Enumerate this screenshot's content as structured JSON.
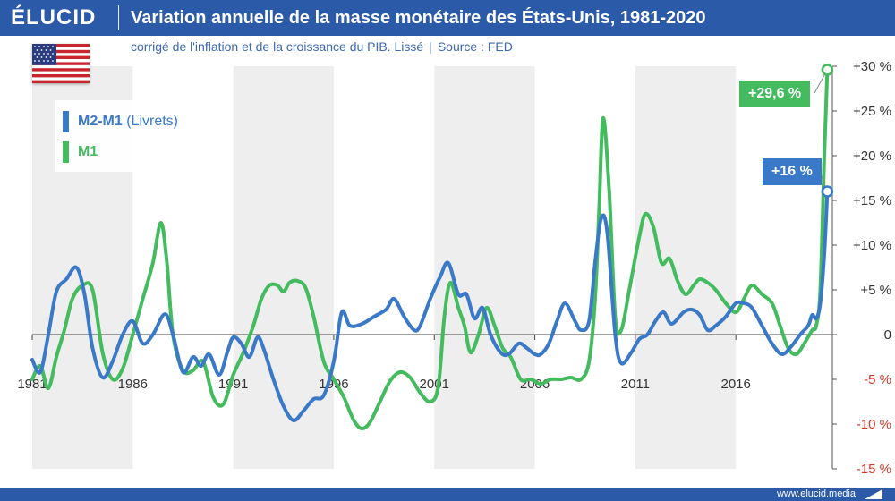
{
  "header": {
    "logo": "ÉLUCID",
    "title": "Variation annuelle de la masse monétaire des États-Unis, 1981-2020",
    "subtitle_main": "corrigé de l'inflation et de la croissance du PIB. Lissé",
    "subtitle_source": "Source : FED",
    "color": "#2b5aa8"
  },
  "footer": {
    "url": "www.elucid.media"
  },
  "flag": {
    "icon": "us-flag-icon"
  },
  "legend": [
    {
      "label": "M2-M1",
      "sub": " (Livrets)",
      "color": "#3a78c8"
    },
    {
      "label": "M1",
      "sub": "",
      "color": "#44bb5e"
    }
  ],
  "tags": {
    "m1_last": {
      "text": "+29,6 %",
      "color": "#44bb5e"
    },
    "m2_last": {
      "text": "+16 %",
      "color": "#3a78c8"
    }
  },
  "chart_data": {
    "type": "line",
    "xlim": [
      1981,
      2020.8
    ],
    "ylim": [
      -15,
      30
    ],
    "x_ticks": [
      1981,
      1986,
      1991,
      1996,
      2001,
      2006,
      2011,
      2016
    ],
    "x_tick_labels": [
      "1981",
      "1986",
      "1991",
      "1996",
      "2001",
      "2006",
      "2011",
      "2016"
    ],
    "y_ticks": [
      30,
      25,
      20,
      15,
      10,
      5,
      0,
      -5,
      -10,
      -15
    ],
    "y_tick_labels": [
      "+30 %",
      "+25 %",
      "+20 %",
      "+15 %",
      "+10 %",
      "+5 %",
      "0",
      "-5 %",
      "-10 %",
      "-15 %"
    ],
    "grid": "alternating vertical bands",
    "series": [
      {
        "name": "M2-M1 (Livrets)",
        "color": "#3a78c8",
        "points": [
          [
            1981,
            -2.8
          ],
          [
            1981.4,
            -4.2
          ],
          [
            1981.8,
            0
          ],
          [
            1982.2,
            4.8
          ],
          [
            1982.7,
            6.2
          ],
          [
            1983.2,
            7.5
          ],
          [
            1983.6,
            4.5
          ],
          [
            1984,
            -1.5
          ],
          [
            1984.5,
            -4.8
          ],
          [
            1985,
            -3
          ],
          [
            1985.5,
            0
          ],
          [
            1986,
            1.5
          ],
          [
            1986.5,
            -1
          ],
          [
            1987,
            0
          ],
          [
            1987.6,
            2.3
          ],
          [
            1988,
            0
          ],
          [
            1988.5,
            -4.2
          ],
          [
            1989,
            -2.5
          ],
          [
            1989.4,
            -3.5
          ],
          [
            1989.8,
            -2.2
          ],
          [
            1990.3,
            -4.5
          ],
          [
            1990.7,
            -2
          ],
          [
            1991,
            -0.3
          ],
          [
            1991.4,
            -1
          ],
          [
            1991.8,
            -2.5
          ],
          [
            1992.2,
            -0.3
          ],
          [
            1992.5,
            -1.5
          ],
          [
            1993,
            -5
          ],
          [
            1993.5,
            -8
          ],
          [
            1994,
            -9.6
          ],
          [
            1994.5,
            -8.5
          ],
          [
            1995,
            -7.2
          ],
          [
            1995.5,
            -6.8
          ],
          [
            1996,
            -3
          ],
          [
            1996.4,
            2.5
          ],
          [
            1996.8,
            1
          ],
          [
            1997.4,
            1.2
          ],
          [
            1998,
            2
          ],
          [
            1998.6,
            2.8
          ],
          [
            1999,
            4
          ],
          [
            1999.5,
            2
          ],
          [
            2000,
            0.5
          ],
          [
            2000.3,
            1
          ],
          [
            2000.8,
            4
          ],
          [
            2001.3,
            6.5
          ],
          [
            2001.7,
            8
          ],
          [
            2002.2,
            4.5
          ],
          [
            2002.6,
            4.5
          ],
          [
            2003,
            1.8
          ],
          [
            2003.4,
            3
          ],
          [
            2003.8,
            0
          ],
          [
            2004.3,
            -2
          ],
          [
            2004.7,
            -2.2
          ],
          [
            2005.2,
            -1
          ],
          [
            2005.6,
            -1.5
          ],
          [
            2006,
            -2.2
          ],
          [
            2006.3,
            -2.2
          ],
          [
            2006.7,
            -1
          ],
          [
            2007.1,
            1.5
          ],
          [
            2007.5,
            3.5
          ],
          [
            2008,
            1.5
          ],
          [
            2008.3,
            0.5
          ],
          [
            2008.7,
            1.5
          ],
          [
            2009,
            8
          ],
          [
            2009.3,
            13
          ],
          [
            2009.6,
            11.5
          ],
          [
            2010,
            0
          ],
          [
            2010.3,
            -3.2
          ],
          [
            2010.8,
            -2
          ],
          [
            2011.2,
            -0.5
          ],
          [
            2011.6,
            0
          ],
          [
            2012,
            1.5
          ],
          [
            2012.4,
            2.5
          ],
          [
            2012.8,
            1.2
          ],
          [
            2013.4,
            2.5
          ],
          [
            2013.8,
            2.8
          ],
          [
            2014.2,
            2.2
          ],
          [
            2014.6,
            0.5
          ],
          [
            2015,
            1
          ],
          [
            2015.5,
            2
          ],
          [
            2016,
            3.5
          ],
          [
            2016.4,
            3.5
          ],
          [
            2016.8,
            3
          ],
          [
            2017.3,
            1
          ],
          [
            2017.8,
            -1
          ],
          [
            2018.3,
            -2.2
          ],
          [
            2018.8,
            -1.2
          ],
          [
            2019.2,
            0
          ],
          [
            2019.6,
            1
          ],
          [
            2019.8,
            2.2
          ],
          [
            2020,
            1.8
          ],
          [
            2020.2,
            3.5
          ],
          [
            2020.4,
            9
          ],
          [
            2020.55,
            16
          ]
        ]
      },
      {
        "name": "M1",
        "color": "#44bb5e",
        "points": [
          [
            1981,
            -5
          ],
          [
            1981.4,
            -3.5
          ],
          [
            1981.8,
            -6
          ],
          [
            1982.2,
            -2.5
          ],
          [
            1982.6,
            0.5
          ],
          [
            1983,
            4
          ],
          [
            1983.5,
            5.5
          ],
          [
            1984,
            5
          ],
          [
            1984.5,
            -2
          ],
          [
            1985,
            -5
          ],
          [
            1985.5,
            -3.8
          ],
          [
            1986,
            0
          ],
          [
            1986.5,
            4
          ],
          [
            1987,
            8
          ],
          [
            1987.4,
            12.5
          ],
          [
            1987.7,
            8
          ],
          [
            1988,
            0
          ],
          [
            1988.5,
            -4
          ],
          [
            1989,
            -4
          ],
          [
            1989.5,
            -3
          ],
          [
            1990,
            -7
          ],
          [
            1990.5,
            -7.8
          ],
          [
            1991,
            -4.5
          ],
          [
            1991.5,
            -2
          ],
          [
            1992,
            1
          ],
          [
            1992.4,
            4
          ],
          [
            1992.8,
            5.5
          ],
          [
            1993.2,
            5.5
          ],
          [
            1993.5,
            4.8
          ],
          [
            1993.8,
            5.8
          ],
          [
            1994.2,
            6
          ],
          [
            1994.6,
            5.2
          ],
          [
            1995,
            2
          ],
          [
            1995.5,
            -3
          ],
          [
            1996,
            -5
          ],
          [
            1996.5,
            -7
          ],
          [
            1997,
            -9.6
          ],
          [
            1997.4,
            -10.5
          ],
          [
            1997.8,
            -9.8
          ],
          [
            1998.3,
            -7.5
          ],
          [
            1998.8,
            -5.2
          ],
          [
            1999.3,
            -4.2
          ],
          [
            1999.8,
            -4.8
          ],
          [
            2000.3,
            -6.5
          ],
          [
            2000.8,
            -7.5
          ],
          [
            2001.2,
            -5.8
          ],
          [
            2001.5,
            2
          ],
          [
            2001.8,
            5.8
          ],
          [
            2002.2,
            3
          ],
          [
            2002.5,
            1
          ],
          [
            2002.8,
            -2
          ],
          [
            2003.2,
            0
          ],
          [
            2003.6,
            3
          ],
          [
            2004,
            1
          ],
          [
            2004.4,
            -1.5
          ],
          [
            2004.8,
            -2.5
          ],
          [
            2005.3,
            -5
          ],
          [
            2005.8,
            -5
          ],
          [
            2006.3,
            -5.5
          ],
          [
            2006.8,
            -5
          ],
          [
            2007.3,
            -5
          ],
          [
            2007.8,
            -4.8
          ],
          [
            2008.3,
            -5
          ],
          [
            2008.7,
            -3
          ],
          [
            2009,
            4
          ],
          [
            2009.2,
            14
          ],
          [
            2009.4,
            24.2
          ],
          [
            2009.7,
            16
          ],
          [
            2010,
            2
          ],
          [
            2010.3,
            0.5
          ],
          [
            2010.7,
            5
          ],
          [
            2011.2,
            11
          ],
          [
            2011.5,
            13.5
          ],
          [
            2011.9,
            12
          ],
          [
            2012.3,
            8
          ],
          [
            2012.7,
            8.5
          ],
          [
            2013.1,
            6
          ],
          [
            2013.5,
            4.5
          ],
          [
            2013.9,
            5.5
          ],
          [
            2014.2,
            6.2
          ],
          [
            2014.6,
            5.8
          ],
          [
            2015,
            5
          ],
          [
            2015.5,
            3.5
          ],
          [
            2016,
            2.5
          ],
          [
            2016.4,
            4
          ],
          [
            2016.8,
            5.5
          ],
          [
            2017.3,
            4.5
          ],
          [
            2017.8,
            3.5
          ],
          [
            2018.2,
            1
          ],
          [
            2018.6,
            -1.5
          ],
          [
            2019,
            -2.2
          ],
          [
            2019.4,
            -1
          ],
          [
            2019.8,
            0.5
          ],
          [
            2020,
            1
          ],
          [
            2020.2,
            5
          ],
          [
            2020.4,
            20
          ],
          [
            2020.55,
            29.6
          ]
        ]
      }
    ]
  }
}
